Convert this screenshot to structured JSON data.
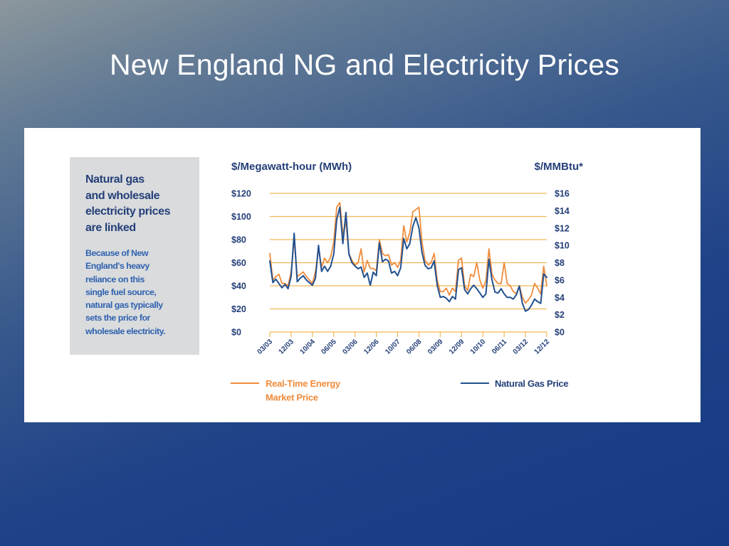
{
  "slide": {
    "title": "New England NG and Electricity Prices"
  },
  "sidebar": {
    "heading": "Natural gas\nand wholesale\nelectricity prices\nare linked",
    "body": "Because of New\nEngland's heavy\nreliance on this\nsingle fuel source,\nnatural gas typically\nsets the price for\nwholesale electricity."
  },
  "colors": {
    "electricity_line": "#f08c3c",
    "gas_line": "#22508f",
    "gridline": "#f2b654",
    "text_navy": "#243f78",
    "sidebar_body_text": "#2f62ae",
    "sidebar_background": "#d9dbdd"
  },
  "chart_data": {
    "type": "line",
    "left_axis_title": "$/Megawatt-hour (MWh)",
    "right_axis_title": "$/MMBtu*",
    "y_left": {
      "ticks": [
        "$120",
        "$100",
        "$80",
        "$60",
        "$40",
        "$20",
        "$0"
      ],
      "range": [
        0,
        120
      ]
    },
    "y_right": {
      "ticks": [
        "$16",
        "$14",
        "$12",
        "$10",
        "$8",
        "$6",
        "$4",
        "$2",
        "$0"
      ],
      "range": [
        0,
        16
      ]
    },
    "x_tick_labels": [
      "03/03",
      "12/03",
      "10/04",
      "06/05",
      "03/06",
      "12/06",
      "10/07",
      "06/08",
      "03/09",
      "12/09",
      "10/10",
      "06/11",
      "03/12",
      "12/12"
    ],
    "x_range_months": "03/03 to 12/12 (monthly)",
    "grid": "horizontal",
    "legend_position": "bottom",
    "series": [
      {
        "name": "Real-Time Energy\nMarket Price",
        "axis": "left",
        "color": "#f08c3c",
        "values": [
          68,
          45,
          48,
          50,
          42,
          42,
          40,
          52,
          80,
          48,
          50,
          52,
          48,
          45,
          42,
          52,
          72,
          56,
          64,
          60,
          65,
          78,
          108,
          112,
          85,
          95,
          68,
          62,
          58,
          60,
          72,
          52,
          62,
          55,
          55,
          53,
          80,
          68,
          66,
          67,
          58,
          60,
          56,
          62,
          92,
          78,
          86,
          104,
          106,
          108,
          78,
          62,
          58,
          60,
          68,
          45,
          35,
          35,
          38,
          32,
          38,
          35,
          62,
          64,
          40,
          36,
          50,
          48,
          60,
          45,
          38,
          44,
          72,
          50,
          45,
          42,
          42,
          60,
          42,
          40,
          35,
          33,
          40,
          30,
          25,
          28,
          32,
          42,
          38,
          33,
          57,
          40
        ]
      },
      {
        "name": "Natural Gas Price",
        "axis": "right",
        "color": "#22508f",
        "values": [
          8.2,
          5.7,
          6.1,
          5.6,
          5.1,
          5.5,
          5.0,
          6.4,
          11.4,
          5.8,
          6.2,
          6.5,
          6.0,
          5.7,
          5.4,
          6.2,
          10.0,
          7.0,
          7.6,
          7.0,
          7.6,
          9.0,
          13.0,
          14.4,
          10.2,
          13.8,
          9.0,
          8.0,
          7.6,
          7.3,
          7.5,
          6.3,
          6.8,
          5.4,
          6.9,
          6.5,
          10.3,
          8.1,
          8.4,
          8.2,
          6.8,
          7.0,
          6.5,
          7.4,
          10.8,
          9.6,
          10.2,
          12.2,
          13.2,
          12.0,
          9.2,
          7.7,
          7.3,
          7.4,
          8.2,
          5.4,
          4.0,
          4.1,
          3.9,
          3.5,
          4.1,
          3.8,
          7.2,
          7.4,
          4.9,
          4.4,
          5.0,
          5.4,
          5.0,
          4.5,
          4.0,
          4.4,
          8.4,
          6.0,
          4.6,
          4.5,
          5.0,
          4.4,
          4.0,
          4.0,
          3.8,
          4.3,
          5.3,
          3.3,
          2.4,
          2.6,
          3.1,
          3.8,
          3.5,
          3.3,
          6.7,
          6.3
        ]
      }
    ]
  }
}
